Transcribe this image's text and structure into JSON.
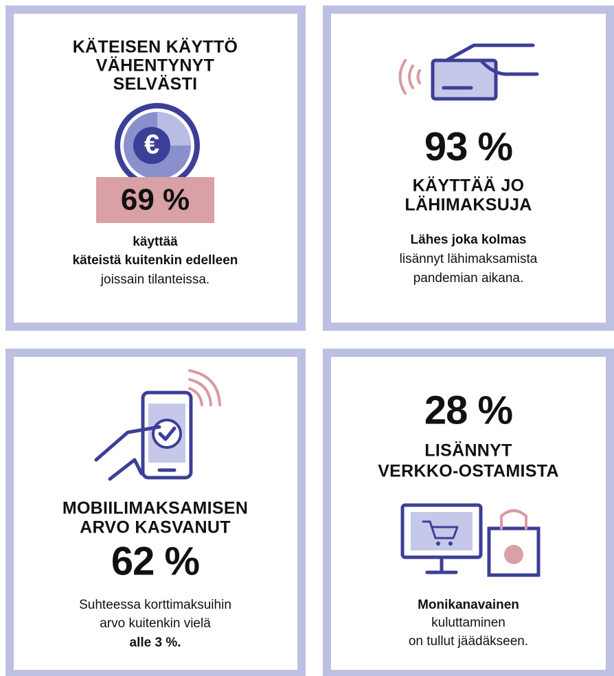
{
  "panels": [
    {
      "title": [
        "KÄTEISEN KÄYTTÖ",
        "VÄHENTYNYT",
        "SELVÄSTI"
      ],
      "stat": "69 %",
      "text": [
        {
          "text": "käyttää",
          "bold": true
        },
        {
          "text": "käteistä kuitenkin edelleen",
          "bold": true
        },
        {
          "text": "joissain tilanteissa.",
          "bold": false
        }
      ]
    },
    {
      "title": [
        "KÄYTTÄÄ JO",
        "LÄHIMAKSUJA"
      ],
      "stat": "93 %",
      "text": [
        {
          "text": "Lähes joka kolmas",
          "bold": true
        },
        {
          "text": "lisännyt lähimaksamista",
          "bold": false
        },
        {
          "text": "pandemian aikana.",
          "bold": false
        }
      ]
    },
    {
      "title": [
        "MOBIILIMAKSAMISEN",
        "ARVO KASVANUT"
      ],
      "stat": "62 %",
      "text": [
        {
          "text": "Suhteessa korttimaksuihin",
          "bold": false
        },
        {
          "text": "arvo kuitenkin vielä",
          "bold": false
        },
        {
          "text": "alle 3 %.",
          "bold": true
        }
      ]
    },
    {
      "title": [
        "LISÄNNYT",
        "VERKKO-OSTAMISTA"
      ],
      "stat": "28 %",
      "text": [
        {
          "text": "Monikanavainen",
          "bold": true
        },
        {
          "text": "kuluttaminen",
          "bold": false
        },
        {
          "text": "on tullut jäädäkseen.",
          "bold": false
        }
      ]
    }
  ]
}
